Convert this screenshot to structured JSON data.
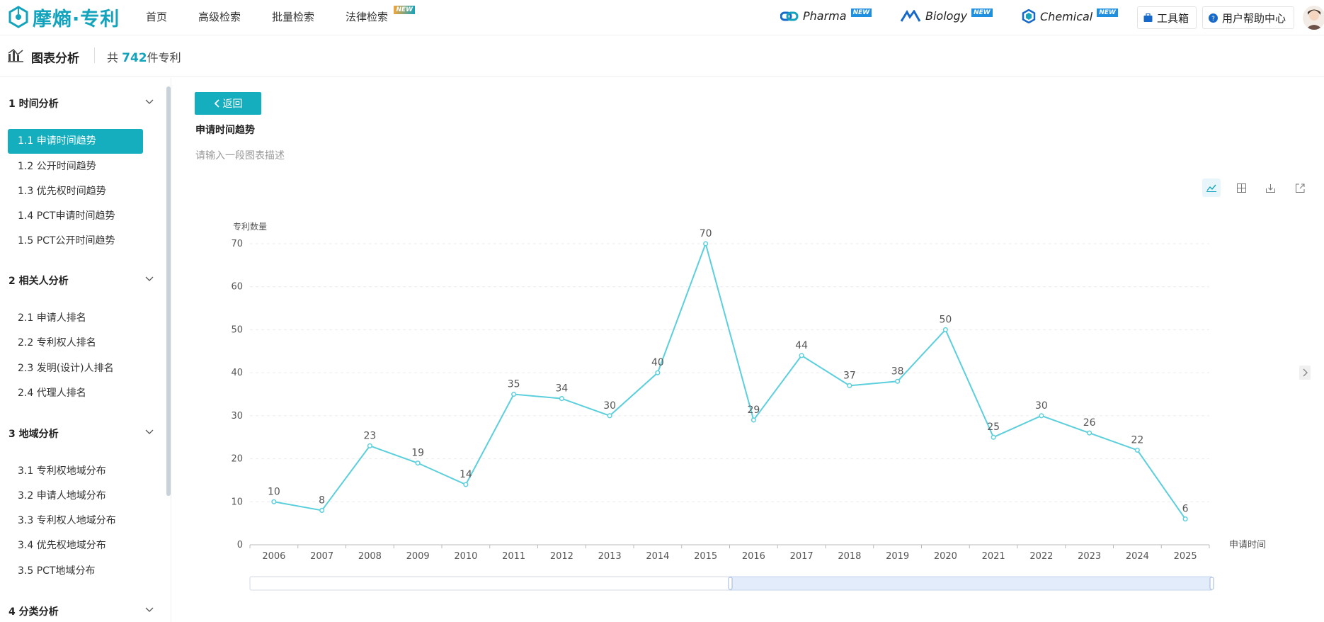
{
  "brand": {
    "name": "摩熵·专利",
    "color": "#14a3bd"
  },
  "nav": [
    {
      "label": "首页"
    },
    {
      "label": "高级检索"
    },
    {
      "label": "批量检索"
    },
    {
      "label": "法律检索",
      "badge": "NEW"
    }
  ],
  "external": [
    {
      "label": "Pharma",
      "badge": "NEW",
      "icon": "pharma-icon"
    },
    {
      "label": "Biology",
      "badge": "NEW",
      "icon": "biology-icon"
    },
    {
      "label": "Chemical",
      "badge": "NEW",
      "icon": "chemical-icon"
    }
  ],
  "header_buttons": {
    "toolbox": "工具箱",
    "help": "用户帮助中心"
  },
  "subheader": {
    "title": "图表分析",
    "count_prefix": "共",
    "count": "742",
    "count_suffix": "件专利"
  },
  "sidebar": {
    "groups": [
      {
        "label": "1 时间分析",
        "items": [
          "1.1 申请时间趋势",
          "1.2 公开时间趋势",
          "1.3 优先权时间趋势",
          "1.4 PCT申请时间趋势",
          "1.5 PCT公开时间趋势"
        ]
      },
      {
        "label": "2 相关人分析",
        "items": [
          "2.1 申请人排名",
          "2.2 专利权人排名",
          "2.3 发明(设计)人排名",
          "2.4 代理人排名"
        ]
      },
      {
        "label": "3 地域分析",
        "items": [
          "3.1 专利权地域分布",
          "3.2 申请人地域分布",
          "3.3 专利权人地域分布",
          "3.4 优先权地域分布",
          "3.5 PCT地域分布"
        ]
      },
      {
        "label": "4 分类分析",
        "items": []
      }
    ],
    "active_item": "1.1 申请时间趋势"
  },
  "main": {
    "back_label": "返回",
    "chart_title": "申请时间趋势",
    "chart_desc_placeholder": "请输入一段图表描述"
  },
  "chart_data": {
    "type": "line",
    "ylabel": "专利数量",
    "xlabel": "申请时间",
    "ylim": [
      0,
      70
    ],
    "yticks": [
      0,
      10,
      20,
      30,
      40,
      50,
      60,
      70
    ],
    "color": "#5bcfdc",
    "categories": [
      "2006",
      "2007",
      "2008",
      "2009",
      "2010",
      "2011",
      "2012",
      "2013",
      "2014",
      "2015",
      "2016",
      "2017",
      "2018",
      "2019",
      "2020",
      "2021",
      "2022",
      "2023",
      "2024",
      "2025"
    ],
    "values": [
      10,
      8,
      23,
      19,
      14,
      35,
      34,
      30,
      40,
      70,
      29,
      44,
      37,
      38,
      50,
      25,
      30,
      26,
      22,
      6
    ],
    "grid": "horizontal-dashed",
    "data_labels": true,
    "zoom_slider": {
      "start_fraction": 0.0,
      "selected_start_fraction": 0.5,
      "end_fraction": 1.0
    }
  }
}
